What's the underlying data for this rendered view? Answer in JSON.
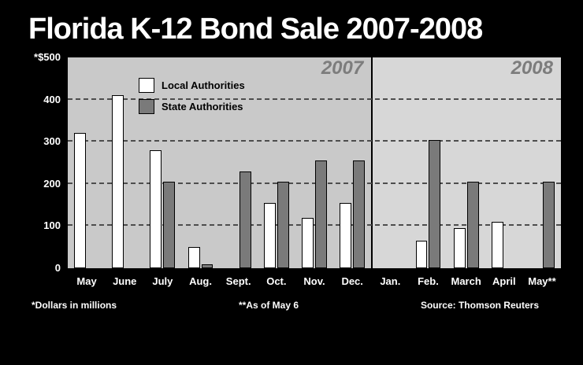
{
  "title": "Florida K-12 Bond Sale 2007-2008",
  "footnotes": {
    "left": "*Dollars in millions",
    "center": "**As of May 6",
    "right": "Source: Thomson Reuters"
  },
  "chart_data": {
    "type": "bar",
    "title": "Florida K-12 Bond Sale 2007-2008",
    "categories": [
      "May",
      "June",
      "July",
      "Aug.",
      "Sept.",
      "Oct.",
      "Nov.",
      "Dec.",
      "Jan.",
      "Feb.",
      "March",
      "April",
      "May**"
    ],
    "series": [
      {
        "name": "Local Authorities",
        "color": "#ffffff",
        "values": [
          320,
          410,
          280,
          50,
          0,
          155,
          120,
          155,
          0,
          65,
          95,
          110,
          0
        ]
      },
      {
        "name": "State Authorities",
        "color": "#7a7a7a",
        "values": [
          0,
          0,
          205,
          10,
          230,
          205,
          255,
          255,
          0,
          305,
          205,
          0,
          205
        ]
      }
    ],
    "ylim": [
      0,
      500
    ],
    "yticks": [
      {
        "label": "*$500",
        "value": 500
      },
      {
        "label": "400",
        "value": 400
      },
      {
        "label": "300",
        "value": 300
      },
      {
        "label": "200",
        "value": 200
      },
      {
        "label": "100",
        "value": 100
      },
      {
        "label": "0",
        "value": 0
      }
    ],
    "panels": [
      {
        "label": "2007",
        "months": 8
      },
      {
        "label": "2008",
        "months": 5
      }
    ],
    "legend_position": "upper-left",
    "grid": "dashed-horizontal",
    "units": "millions of dollars"
  }
}
